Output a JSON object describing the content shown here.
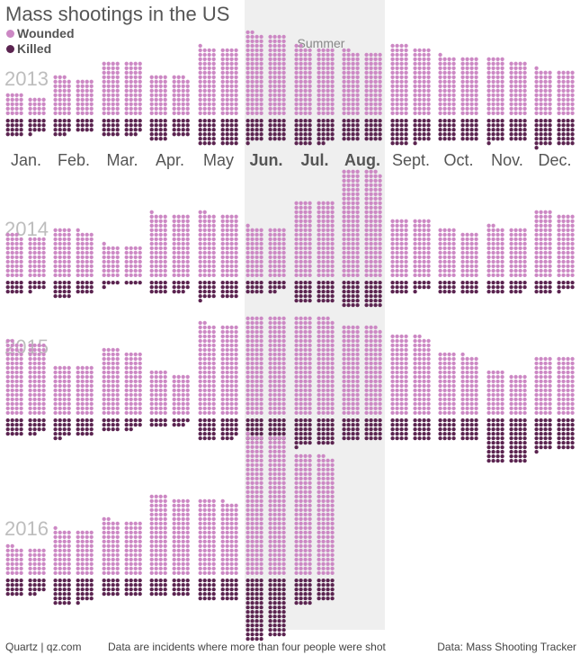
{
  "title": "Mass shootings in the US",
  "legend": {
    "wounded": "Wounded",
    "killed": "Killed"
  },
  "colors": {
    "wounded": "#cc88c4",
    "killed": "#5b2450",
    "summer_band": "#efefef",
    "year_label": "#bdbdbd",
    "month_label": "#555555"
  },
  "summer_label": "Summer",
  "footer": {
    "left": "Quartz | qz.com",
    "middle": "Data are incidents where more than four people were shot",
    "right": "Data: Mass Shooting Tracker"
  },
  "chart_data": {
    "type": "dot-matrix",
    "title": "Mass shootings in the US",
    "x": [
      "Jan.",
      "Feb.",
      "Mar.",
      "Apr.",
      "May",
      "Jun.",
      "Jul.",
      "Aug.",
      "Sept.",
      "Oct.",
      "Nov.",
      "Dec."
    ],
    "highlighted_months": [
      "Jun.",
      "Jul.",
      "Aug."
    ],
    "annotation": "Summer",
    "years": [
      "2013",
      "2014",
      "2015",
      "2016"
    ],
    "series": [
      {
        "name": "Wounded",
        "values": {
          "2013": [
            36,
            67,
            96,
            71,
            121,
            146,
            122,
            114,
            124,
            105,
            100,
            81
          ],
          "2014": [
            75,
            85,
            57,
            113,
            114,
            89,
            136,
            191,
            104,
            84,
            90,
            116
          ],
          "2015": [
            130,
            88,
            116,
            76,
            162,
            176,
            175,
            159,
            142,
            109,
            76,
            104
          ],
          "2016": [
            50,
            81,
            98,
            140,
            133,
            249,
            214,
            null,
            null,
            null,
            null,
            null
          ]
        }
      },
      {
        "name": "Killed",
        "values": {
          "2013": [
            29,
            27,
            31,
            36,
            48,
            41,
            46,
            40,
            45,
            40,
            41,
            49
          ],
          "2014": [
            21,
            28,
            9,
            23,
            33,
            22,
            40,
            48,
            21,
            24,
            23,
            21
          ],
          "2015": [
            30,
            34,
            22,
            15,
            39,
            40,
            49,
            40,
            40,
            40,
            80,
            57
          ],
          "2016": [
            30,
            45,
            32,
            32,
            40,
            108,
            44,
            null,
            null,
            null,
            null,
            null
          ]
        }
      }
    ]
  }
}
